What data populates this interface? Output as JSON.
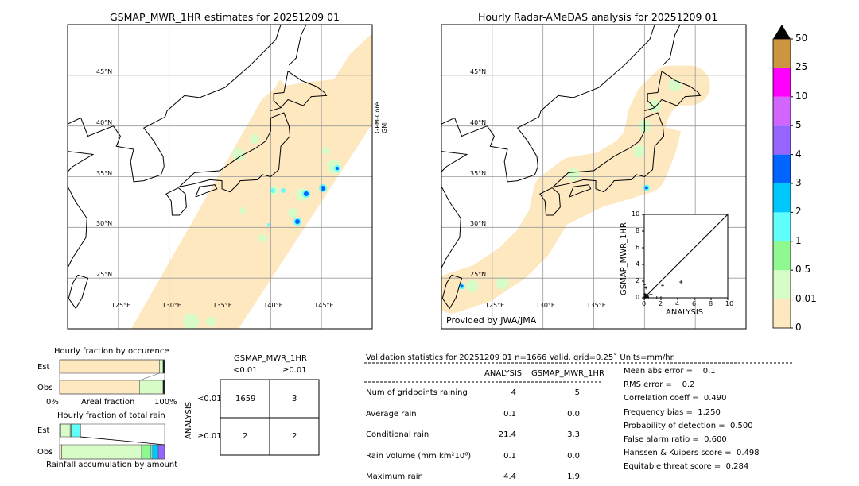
{
  "map_left": {
    "title": "GSMAP_MWR_1HR estimates for 20251209 01",
    "sensor_label": [
      "GPM-Core",
      "GMI"
    ]
  },
  "map_right": {
    "title": "Hourly Radar-AMeDAS analysis for 20251209 01",
    "credit": "Provided by JWA/JMA"
  },
  "lat_labels": [
    "45°N",
    "40°N",
    "35°N",
    "30°N",
    "25°N"
  ],
  "lon_labels": [
    "125°E",
    "130°E",
    "135°E",
    "140°E",
    "145°E"
  ],
  "colorbar": {
    "levels": [
      "0",
      "0.01",
      "0.5",
      "1",
      "2",
      "3",
      "4",
      "5",
      "10",
      "25",
      "50"
    ],
    "colors": [
      "#fee8c0",
      "#d8fcc8",
      "#90f890",
      "#60fffc",
      "#00c8ff",
      "#0064ff",
      "#9664ff",
      "#d264ff",
      "#ff00ff",
      "#cc9640"
    ],
    "extend_color": "#000000"
  },
  "chart_data": [
    {
      "type": "scatter",
      "xlabel": "ANALYSIS",
      "ylabel": "GSMAP_MWR_1HR",
      "xlim": [
        0,
        10
      ],
      "ylim": [
        0,
        10
      ],
      "ticks": [
        "0",
        "2",
        "4",
        "6",
        "8",
        "10"
      ],
      "points": [
        [
          0,
          1.6
        ],
        [
          0.2,
          1.2
        ],
        [
          0.8,
          0.4
        ],
        [
          2.2,
          1.5
        ],
        [
          4.4,
          1.9
        ],
        [
          2.0,
          0
        ],
        [
          1.5,
          0
        ],
        [
          0.1,
          0.1
        ],
        [
          0.2,
          0.3
        ],
        [
          0.3,
          0.1
        ],
        [
          0.4,
          0.2
        ],
        [
          0.1,
          0.4
        ],
        [
          0.5,
          0
        ]
      ],
      "diagonal": true
    },
    {
      "type": "bar",
      "title": "Hourly fraction by occurence",
      "xlabel": "Areal fraction",
      "xticks": [
        "0%",
        "100%"
      ],
      "categories": [
        "Est",
        "Obs"
      ],
      "stacked_fractions": {
        "Est": [
          0.95,
          0.035,
          0.015
        ],
        "Obs": [
          0.76,
          0.225,
          0.015
        ]
      }
    },
    {
      "type": "bar",
      "title": "Hourly fraction of total rain",
      "xlabel": "Rainfall accumulation by amount",
      "categories": [
        "Est",
        "Obs"
      ],
      "stacked_fractions": {
        "Est": [
          0.01,
          0.09,
          0.01,
          0.09
        ],
        "Obs": [
          0.02,
          0.76,
          0.09,
          0.015,
          0.055,
          0.06
        ]
      }
    }
  ],
  "contingency": {
    "title": "GSMAP_MWR_1HR",
    "col_labels": [
      "<0.01",
      "≥0.01"
    ],
    "row_title": "ANALYSIS",
    "row_labels": [
      "<0.01",
      "≥0.01"
    ],
    "cells": [
      [
        "1659",
        "3"
      ],
      [
        "2",
        "2"
      ]
    ]
  },
  "validation": {
    "header": "Validation statistics for 20251209 01  n=1666 Valid. grid=0.25˚ Units=mm/hr.",
    "col_headers": [
      "ANALYSIS",
      "GSMAP_MWR_1HR"
    ],
    "rows": [
      {
        "label": "Num of gridpoints raining",
        "a": "4",
        "b": "5"
      },
      {
        "label": "Average rain",
        "a": "0.1",
        "b": "0.0"
      },
      {
        "label": "Conditional rain",
        "a": "21.4",
        "b": "3.3"
      },
      {
        "label": "Rain volume (mm km²10⁶)",
        "a": "0.1",
        "b": "0.0"
      },
      {
        "label": "Maximum rain",
        "a": "4.4",
        "b": "1.9"
      }
    ],
    "scores": [
      "Mean abs error =    0.1",
      "RMS error =    0.2",
      "Correlation coeff =  0.490",
      "Frequency bias =  1.250",
      "Probability of detection =  0.500",
      "False alarm ratio =  0.600",
      "Hanssen & Kuipers score =  0.498",
      "Equitable threat score =  0.284"
    ]
  }
}
